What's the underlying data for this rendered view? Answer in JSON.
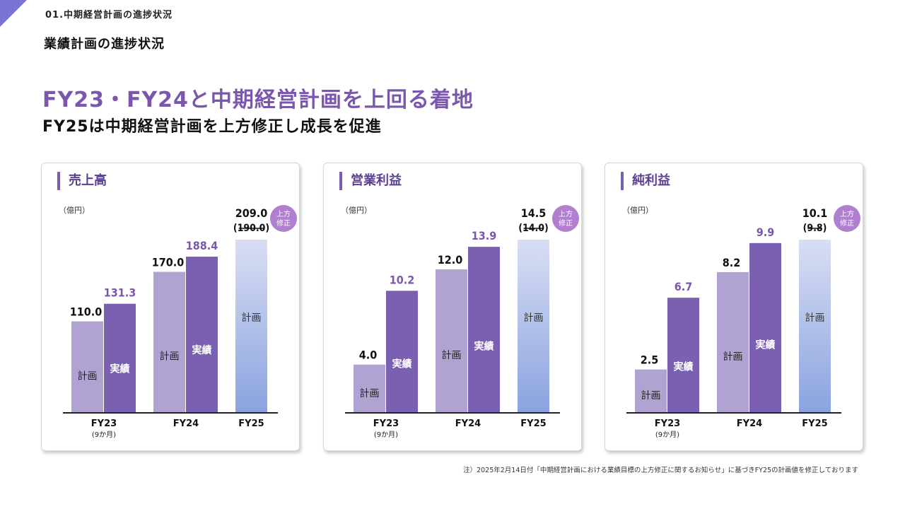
{
  "header": {
    "section": "01.中期経営計画の進捗状況",
    "title": "業績計画の進捗状況"
  },
  "headline": {
    "main": "FY23・FY24と中期経営計画を上回る着地",
    "sub": "FY25は中期経営計画を上方修正し成長を促進"
  },
  "labels": {
    "unit": "（億円）",
    "plan": "計画",
    "actual": "実績",
    "badge_line1": "上方",
    "badge_line2": "修正"
  },
  "colors": {
    "plan": "#b1a3d1",
    "actual": "#7b5fb1",
    "fy25_top": "#d9def3",
    "fy25_bottom": "#8aa3e0",
    "actual_label": "#7a57ad",
    "badge": "#b07fd0"
  },
  "footnote": "注）2025年2月14日付「中期経営計画における業績目標の上方修正に関するお知らせ」に基づきFY25の計画値を修正しております",
  "chart_data": [
    {
      "type": "bar",
      "title": "売上高",
      "ylabel": "（億円）",
      "categories": [
        "FY23",
        "FY24",
        "FY25"
      ],
      "category_notes": [
        "(9か月)",
        "",
        ""
      ],
      "series": [
        {
          "name": "計画",
          "values": [
            110.0,
            170.0,
            209.0
          ]
        },
        {
          "name": "実績",
          "values": [
            131.3,
            188.4,
            null
          ]
        }
      ],
      "value_labels": {
        "plan": [
          "110.0",
          "170.0",
          "209.0"
        ],
        "actual": [
          "131.3",
          "188.4",
          null
        ]
      },
      "revised_from": "190.0",
      "ylim": [
        0,
        230
      ]
    },
    {
      "type": "bar",
      "title": "営業利益",
      "ylabel": "（億円）",
      "categories": [
        "FY23",
        "FY24",
        "FY25"
      ],
      "category_notes": [
        "(9か月)",
        "",
        ""
      ],
      "series": [
        {
          "name": "計画",
          "values": [
            4.0,
            12.0,
            14.5
          ]
        },
        {
          "name": "実績",
          "values": [
            10.2,
            13.9,
            null
          ]
        }
      ],
      "value_labels": {
        "plan": [
          "4.0",
          "12.0",
          "14.5"
        ],
        "actual": [
          "10.2",
          "13.9",
          null
        ]
      },
      "revised_from": "14.0",
      "ylim": [
        0,
        16
      ]
    },
    {
      "type": "bar",
      "title": "純利益",
      "ylabel": "（億円）",
      "categories": [
        "FY23",
        "FY24",
        "FY25"
      ],
      "category_notes": [
        "(9か月)",
        "",
        ""
      ],
      "series": [
        {
          "name": "計画",
          "values": [
            2.5,
            8.2,
            10.1
          ]
        },
        {
          "name": "実績",
          "values": [
            6.7,
            9.9,
            null
          ]
        }
      ],
      "value_labels": {
        "plan": [
          "2.5",
          "8.2",
          "10.1"
        ],
        "actual": [
          "6.7",
          "9.9",
          null
        ]
      },
      "revised_from": "9.8",
      "ylim": [
        0,
        13
      ]
    }
  ]
}
